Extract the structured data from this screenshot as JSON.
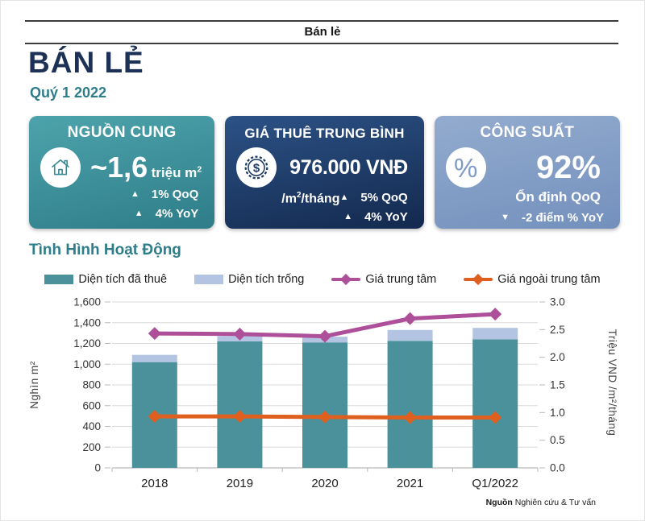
{
  "page": {
    "header_tab": "Bán lẻ",
    "title": "BÁN LẺ",
    "subtitle": "Quý 1 2022",
    "section_title": "Tình Hình Hoạt Động",
    "source": {
      "label": "Nguồn",
      "text": "Nghiên cứu & Tư vấn"
    }
  },
  "cards": [
    {
      "title": "NGUỒN CUNG",
      "icon": "house-icon",
      "icon_color": "#3c8b94",
      "value_main": "~1,6",
      "value_unit": "triệu m",
      "value_unit_sup": "2",
      "stats": [
        {
          "arrow": "▲",
          "text": "1% QoQ"
        },
        {
          "arrow": "▲",
          "text": "4% YoY"
        }
      ],
      "colors": {
        "top": "#4da3ab",
        "bottom": "#2e7d89"
      }
    },
    {
      "title": "GIÁ THUÊ TRUNG BÌNH",
      "icon": "dollar-coin-icon",
      "icon_color": "#1d3a66",
      "icon_glyph": "$",
      "value_main": "976.000 VNĐ",
      "unit_pre": "/m",
      "unit_sup": "2",
      "unit_post": "/tháng",
      "stats": [
        {
          "arrow": "▲",
          "text": "5% QoQ"
        },
        {
          "arrow": "▲",
          "text": "4% YoY"
        }
      ],
      "colors": {
        "top": "#2c5286",
        "bottom": "#13294e"
      }
    },
    {
      "title": "CÔNG SUẤT",
      "icon": "percent-icon",
      "icon_color": "#7e9cc7",
      "icon_glyph": "%",
      "value_main": "92%",
      "status_text": "Ổn định QoQ",
      "stats": [
        {
          "arrow": "▼",
          "text": "-2 điểm % YoY"
        }
      ],
      "colors": {
        "top": "#93abce",
        "bottom": "#7390bd"
      }
    }
  ],
  "chart_data": {
    "type": "bar",
    "subtype": "stacked-bar with two line series on secondary axis",
    "categories": [
      "2018",
      "2019",
      "2020",
      "2021",
      "Q1/2022"
    ],
    "series": [
      {
        "name": "Diện tích đã thuê",
        "type": "bar",
        "axis": "left",
        "color": "#4a919b",
        "values": [
          1020,
          1220,
          1210,
          1225,
          1240
        ]
      },
      {
        "name": "Diện tích trống",
        "type": "bar",
        "axis": "left",
        "color": "#b3c4e2",
        "values": [
          70,
          50,
          55,
          105,
          110
        ]
      },
      {
        "name": "Giá trung tâm",
        "type": "line",
        "axis": "right",
        "color": "#ae4f9a",
        "values": [
          2.43,
          2.42,
          2.38,
          2.7,
          2.78
        ]
      },
      {
        "name": "Giá ngoài trung tâm",
        "type": "line",
        "axis": "right",
        "color": "#df5f1e",
        "values": [
          0.93,
          0.93,
          0.92,
          0.91,
          0.91
        ]
      }
    ],
    "left_axis": {
      "title": "Nghìn m²",
      "min": 0,
      "max": 1600,
      "step": 200
    },
    "right_axis": {
      "title": "Triệu VND /m²/tháng",
      "min": 0,
      "max": 3,
      "step": 0.5
    },
    "grid": "horizontal",
    "legend_position": "top"
  }
}
